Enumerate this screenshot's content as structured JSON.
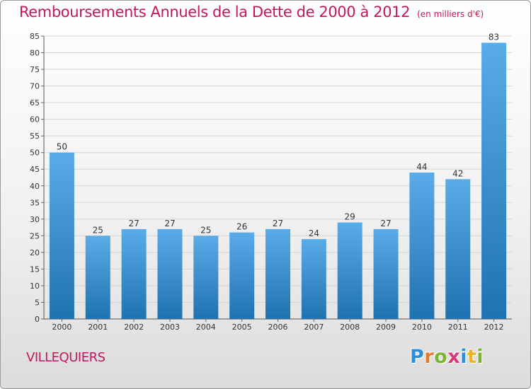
{
  "title": "Remboursements Annuels de la Dette de 2000 à 2012",
  "subtitle": "(en milliers d'€)",
  "location": "VILLEQUIERS",
  "brand": {
    "letters": [
      "P",
      "r",
      "o",
      "x",
      "i",
      "t",
      "i"
    ],
    "colors": [
      "#2e8fd6",
      "#e8792a",
      "#7ab532",
      "#d63a7a",
      "#2e8fd6",
      "#e8b324",
      "#7ab532"
    ]
  },
  "colors": {
    "title": "#c2185b",
    "bar_light": "#5aace8",
    "bar_dark": "#1f72b0"
  },
  "chart_data": {
    "type": "bar",
    "categories": [
      "2000",
      "2001",
      "2002",
      "2003",
      "2004",
      "2005",
      "2006",
      "2007",
      "2008",
      "2009",
      "2010",
      "2011",
      "2012"
    ],
    "values": [
      50,
      25,
      27,
      27,
      25,
      26,
      27,
      24,
      29,
      27,
      44,
      42,
      83
    ],
    "ylim": [
      0,
      85
    ],
    "yticks": [
      0,
      5,
      10,
      15,
      20,
      25,
      30,
      35,
      40,
      45,
      50,
      55,
      60,
      65,
      70,
      75,
      80,
      85
    ],
    "grid": true,
    "legend": "none"
  }
}
